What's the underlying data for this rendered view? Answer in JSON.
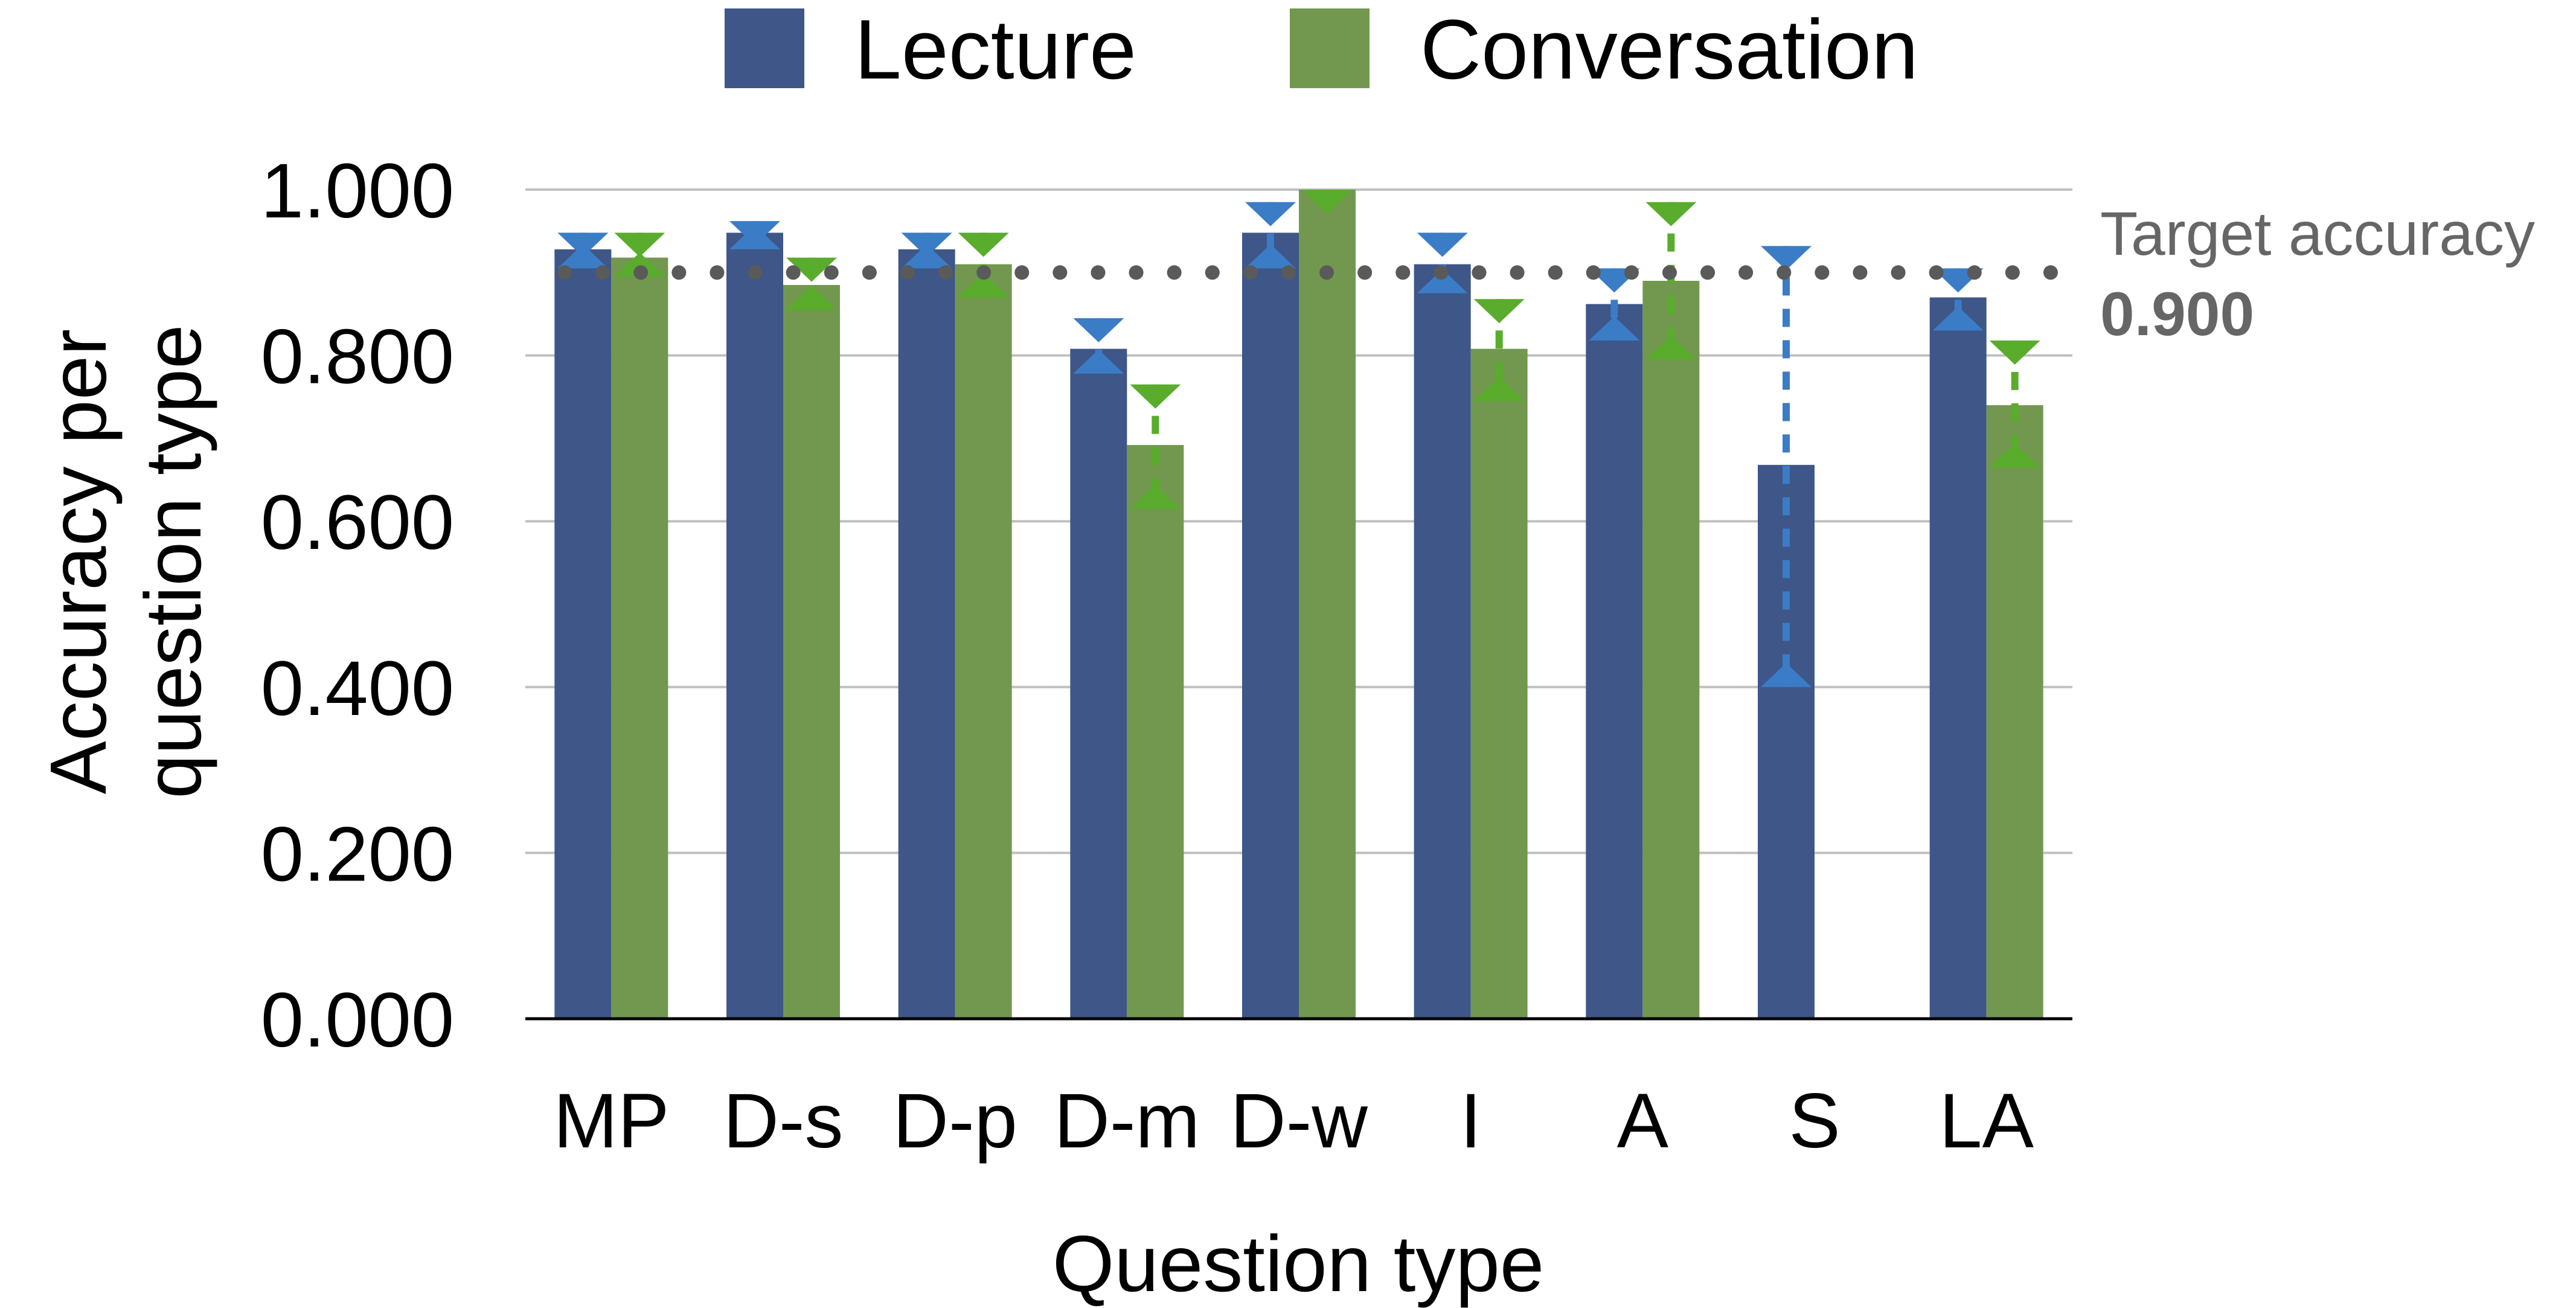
{
  "chart_data": {
    "type": "bar",
    "title": "",
    "xlabel": "Question type",
    "ylabel_lines": [
      "Accuracy per",
      "question type"
    ],
    "ylim": [
      0,
      1
    ],
    "y_ticks": [
      "0.000",
      "0.200",
      "0.400",
      "0.600",
      "0.800",
      "1.000"
    ],
    "grid": true,
    "legend_position": "top-center",
    "categories": [
      "MP",
      "D-s",
      "D-p",
      "D-m",
      "D-w",
      "I",
      "A",
      "S",
      "LA"
    ],
    "series": [
      {
        "name": "Lecture",
        "color": "#3e5688",
        "error_color": "#3b7cc6",
        "values": [
          0.928,
          0.948,
          0.928,
          0.808,
          0.948,
          0.91,
          0.862,
          0.668,
          0.87
        ],
        "error_low": [
          0.905,
          0.928,
          0.905,
          0.778,
          0.905,
          0.875,
          0.818,
          0.4,
          0.83
        ],
        "error_high": [
          0.948,
          0.962,
          0.948,
          0.845,
          0.985,
          0.948,
          0.905,
          0.932,
          0.905
        ]
      },
      {
        "name": "Conversation",
        "color": "#72984f",
        "error_color": "#5aac2c",
        "values": [
          0.918,
          0.885,
          0.91,
          0.692,
          1.0,
          0.808,
          0.89,
          null,
          0.74
        ],
        "error_low": [
          0.895,
          0.855,
          0.87,
          0.615,
          null,
          0.745,
          0.795,
          null,
          0.665
        ],
        "error_high": [
          0.948,
          0.918,
          0.948,
          0.765,
          1.0,
          0.868,
          0.985,
          null,
          0.818
        ]
      }
    ],
    "reference_line": {
      "label": "Target accuracy",
      "value_label": "0.900",
      "value": 0.9,
      "color": "#5a5a5a"
    },
    "axis_color": "#000000",
    "grid_color": "#c0c0c0"
  }
}
